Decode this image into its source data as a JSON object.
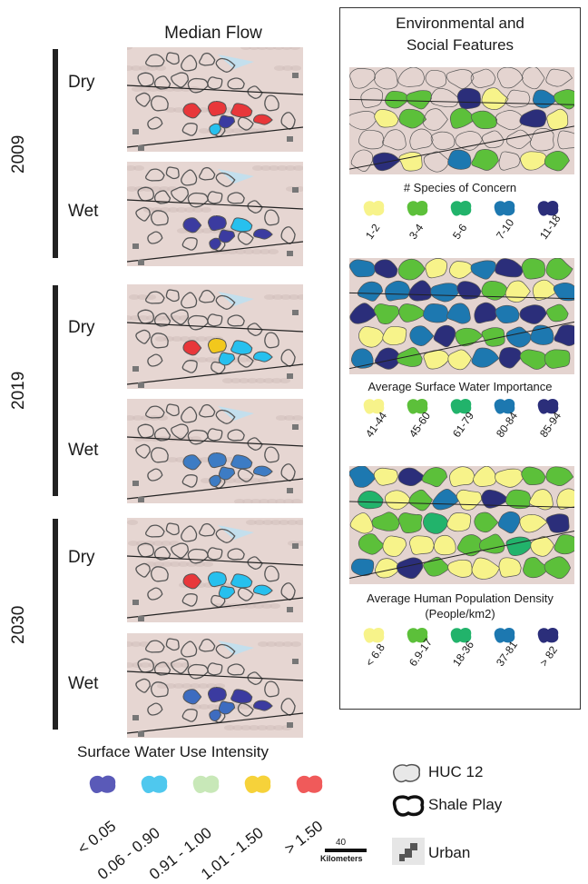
{
  "left_panel": {
    "title": "Median Flow",
    "groups": [
      {
        "year": "2009",
        "conditions": [
          {
            "label": "Dry",
            "highlights": [
              [
                "#e8373a",
                "#e8373a",
                "#e8373a",
                "#3a3aa0",
                "#e8373a",
                "#27c0ee"
              ]
            ]
          },
          {
            "label": "Wet",
            "highlights": [
              [
                "#3b3ba0",
                "#3b3ba0",
                "#27c0ee",
                "#3b3ba0",
                "#3b3ba0",
                "#3b3ba0"
              ]
            ]
          }
        ]
      },
      {
        "year": "2019",
        "conditions": [
          {
            "label": "Dry",
            "highlights": [
              [
                "#e8373a",
                "#f2c81c",
                "#27c0ee",
                "#27c0ee",
                "#27c0ee"
              ]
            ]
          },
          {
            "label": "Wet",
            "highlights": [
              [
                "#3d7cc4",
                "#3d7cc4",
                "#3d7cc4",
                "#3d7cc4",
                "#3d7cc4",
                "#3d7cc4"
              ]
            ]
          }
        ]
      },
      {
        "year": "2030",
        "conditions": [
          {
            "label": "Dry",
            "highlights": [
              [
                "#e8373a",
                "#27c0ee",
                "#27c0ee",
                "#27c0ee",
                "#27c0ee"
              ]
            ]
          },
          {
            "label": "Wet",
            "highlights": [
              [
                "#3d6cc0",
                "#3b3ba0",
                "#3b3ba0",
                "#3d6cc0",
                "#3b3ba0",
                "#3d6cc0"
              ]
            ]
          }
        ]
      }
    ]
  },
  "right_panel": {
    "title_line1": "Environmental and",
    "title_line2": "Social Features",
    "maps": [
      {
        "legend_title": "# Species of Concern",
        "legend_title2": "",
        "classes": [
          {
            "label": "1-2",
            "color": "#f7f38a"
          },
          {
            "label": "3-4",
            "color": "#5cc03a"
          },
          {
            "label": "5-6",
            "color": "#22b36b"
          },
          {
            "label": "7-10",
            "color": "#1d78b0"
          },
          {
            "label": "11-18",
            "color": "#2b2e7a"
          }
        ]
      },
      {
        "legend_title": "Average Surface Water Importance",
        "legend_title2": "",
        "classes": [
          {
            "label": "41-44",
            "color": "#f7f38a"
          },
          {
            "label": "45-60",
            "color": "#5cc03a"
          },
          {
            "label": "61-79",
            "color": "#22b36b"
          },
          {
            "label": "80-84",
            "color": "#1d78b0"
          },
          {
            "label": "85-94",
            "color": "#2b2e7a"
          }
        ]
      },
      {
        "legend_title": "Average Human Population Density",
        "legend_title2": "(People/km2)",
        "classes": [
          {
            "label": "< 6.8",
            "color": "#f7f38a"
          },
          {
            "label": "6.9-17",
            "color": "#5cc03a"
          },
          {
            "label": "18-36",
            "color": "#22b36b"
          },
          {
            "label": "37-81",
            "color": "#1d78b0"
          },
          {
            "label": "> 82",
            "color": "#2b2e7a"
          }
        ]
      }
    ]
  },
  "bottom_legend": {
    "title": "Surface Water Use Intensity",
    "classes": [
      {
        "label": "< 0.05",
        "color": "#5a5ab8"
      },
      {
        "label": "0.06 - 0.90",
        "color": "#4fc8ee"
      },
      {
        "label": "0.91 - 1.00",
        "color": "#c8e8b8"
      },
      {
        "label": "1.01 - 1.50",
        "color": "#f6d23a"
      },
      {
        "label": "> 1.50",
        "color": "#f05a5a"
      }
    ]
  },
  "scale": {
    "value": "40",
    "unit": "Kilometers"
  },
  "key": {
    "huc": "HUC 12",
    "shale": "Shale Play",
    "urban": "Urban"
  }
}
